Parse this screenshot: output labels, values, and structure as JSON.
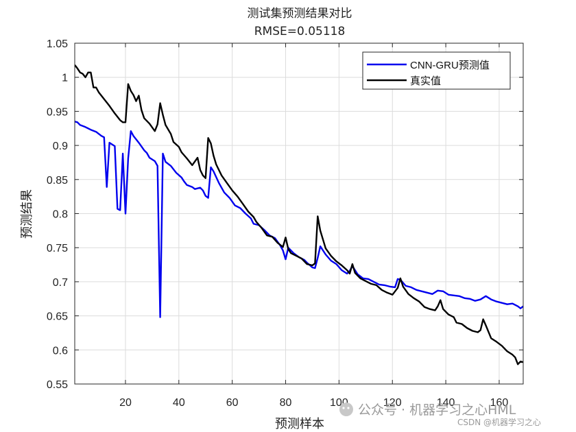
{
  "chart_data": {
    "type": "line",
    "title": "测试集预测结果对比",
    "subtitle": "RMSE=0.05118",
    "xlabel": "预测样本",
    "ylabel": "预测结果",
    "xlim": [
      1,
      169
    ],
    "ylim": [
      0.55,
      1.05
    ],
    "xticks": [
      20,
      40,
      60,
      80,
      100,
      120,
      140,
      160
    ],
    "yticks": [
      0.55,
      0.6,
      0.65,
      0.7,
      0.75,
      0.8,
      0.85,
      0.9,
      0.95,
      1,
      1.05
    ],
    "ytick_labels": [
      "0.55",
      "0.6",
      "0.65",
      "0.7",
      "0.75",
      "0.8",
      "0.85",
      "0.9",
      "0.95",
      "1",
      "1.05"
    ],
    "grid": true,
    "legend_position": "top-right",
    "series": [
      {
        "name": "CNN-GRU预测值",
        "color": "#0000ee",
        "points": [
          [
            1,
            0.935
          ],
          [
            2,
            0.934
          ],
          [
            3,
            0.93
          ],
          [
            5,
            0.927
          ],
          [
            7,
            0.923
          ],
          [
            9,
            0.92
          ],
          [
            10,
            0.917
          ],
          [
            11,
            0.914
          ],
          [
            12,
            0.912
          ],
          [
            13,
            0.839
          ],
          [
            14,
            0.904
          ],
          [
            16,
            0.899
          ],
          [
            17,
            0.807
          ],
          [
            18,
            0.805
          ],
          [
            19,
            0.888
          ],
          [
            20,
            0.8
          ],
          [
            21,
            0.881
          ],
          [
            22,
            0.921
          ],
          [
            23,
            0.914
          ],
          [
            25,
            0.904
          ],
          [
            27,
            0.893
          ],
          [
            28,
            0.889
          ],
          [
            29,
            0.882
          ],
          [
            31,
            0.877
          ],
          [
            32,
            0.87
          ],
          [
            33,
            0.648
          ],
          [
            34,
            0.888
          ],
          [
            35,
            0.876
          ],
          [
            37,
            0.87
          ],
          [
            39,
            0.86
          ],
          [
            41,
            0.853
          ],
          [
            42,
            0.847
          ],
          [
            43,
            0.842
          ],
          [
            45,
            0.839
          ],
          [
            46,
            0.836
          ],
          [
            48,
            0.838
          ],
          [
            49,
            0.834
          ],
          [
            50,
            0.826
          ],
          [
            51,
            0.823
          ],
          [
            52,
            0.868
          ],
          [
            53,
            0.862
          ],
          [
            55,
            0.845
          ],
          [
            57,
            0.831
          ],
          [
            59,
            0.823
          ],
          [
            61,
            0.812
          ],
          [
            63,
            0.808
          ],
          [
            65,
            0.8
          ],
          [
            67,
            0.793
          ],
          [
            68,
            0.785
          ],
          [
            70,
            0.783
          ],
          [
            72,
            0.776
          ],
          [
            74,
            0.768
          ],
          [
            76,
            0.764
          ],
          [
            78,
            0.753
          ],
          [
            79,
            0.746
          ],
          [
            80,
            0.733
          ],
          [
            81,
            0.75
          ],
          [
            83,
            0.742
          ],
          [
            85,
            0.736
          ],
          [
            87,
            0.732
          ],
          [
            88,
            0.728
          ],
          [
            90,
            0.721
          ],
          [
            91,
            0.72
          ],
          [
            92,
            0.735
          ],
          [
            93,
            0.752
          ],
          [
            95,
            0.74
          ],
          [
            97,
            0.731
          ],
          [
            99,
            0.726
          ],
          [
            101,
            0.717
          ],
          [
            103,
            0.712
          ],
          [
            104,
            0.716
          ],
          [
            105,
            0.723
          ],
          [
            107,
            0.711
          ],
          [
            109,
            0.705
          ],
          [
            111,
            0.704
          ],
          [
            113,
            0.7
          ],
          [
            115,
            0.696
          ],
          [
            117,
            0.695
          ],
          [
            119,
            0.693
          ],
          [
            121,
            0.692
          ],
          [
            122,
            0.704
          ],
          [
            123,
            0.703
          ],
          [
            125,
            0.694
          ],
          [
            127,
            0.692
          ],
          [
            129,
            0.688
          ],
          [
            131,
            0.686
          ],
          [
            133,
            0.684
          ],
          [
            135,
            0.682
          ],
          [
            137,
            0.687
          ],
          [
            139,
            0.686
          ],
          [
            141,
            0.681
          ],
          [
            143,
            0.68
          ],
          [
            145,
            0.679
          ],
          [
            147,
            0.676
          ],
          [
            149,
            0.675
          ],
          [
            151,
            0.672
          ],
          [
            153,
            0.674
          ],
          [
            155,
            0.679
          ],
          [
            157,
            0.674
          ],
          [
            159,
            0.671
          ],
          [
            161,
            0.669
          ],
          [
            163,
            0.667
          ],
          [
            165,
            0.668
          ],
          [
            167,
            0.664
          ],
          [
            168,
            0.661
          ],
          [
            169,
            0.664
          ]
        ]
      },
      {
        "name": "真实值",
        "color": "#000000",
        "points": [
          [
            1,
            1.018
          ],
          [
            2,
            1.013
          ],
          [
            3,
            1.007
          ],
          [
            4,
            1.005
          ],
          [
            5,
            1.0
          ],
          [
            6,
            1.007
          ],
          [
            7,
            1.007
          ],
          [
            8,
            0.985
          ],
          [
            9,
            0.985
          ],
          [
            10,
            0.978
          ],
          [
            12,
            0.968
          ],
          [
            14,
            0.958
          ],
          [
            16,
            0.947
          ],
          [
            18,
            0.937
          ],
          [
            19,
            0.934
          ],
          [
            20,
            0.934
          ],
          [
            21,
            0.99
          ],
          [
            22,
            0.98
          ],
          [
            23,
            0.974
          ],
          [
            24,
            0.965
          ],
          [
            25,
            0.973
          ],
          [
            26,
            0.952
          ],
          [
            27,
            0.94
          ],
          [
            29,
            0.932
          ],
          [
            31,
            0.921
          ],
          [
            32,
            0.931
          ],
          [
            33,
            0.962
          ],
          [
            34,
            0.945
          ],
          [
            35,
            0.93
          ],
          [
            37,
            0.917
          ],
          [
            38,
            0.905
          ],
          [
            40,
            0.898
          ],
          [
            41,
            0.89
          ],
          [
            43,
            0.881
          ],
          [
            45,
            0.871
          ],
          [
            47,
            0.882
          ],
          [
            48,
            0.864
          ],
          [
            49,
            0.856
          ],
          [
            50,
            0.852
          ],
          [
            51,
            0.911
          ],
          [
            52,
            0.903
          ],
          [
            53,
            0.885
          ],
          [
            54,
            0.872
          ],
          [
            56,
            0.856
          ],
          [
            58,
            0.845
          ],
          [
            60,
            0.834
          ],
          [
            62,
            0.825
          ],
          [
            64,
            0.814
          ],
          [
            66,
            0.803
          ],
          [
            68,
            0.795
          ],
          [
            69,
            0.788
          ],
          [
            71,
            0.779
          ],
          [
            73,
            0.768
          ],
          [
            75,
            0.766
          ],
          [
            77,
            0.757
          ],
          [
            79,
            0.751
          ],
          [
            80,
            0.765
          ],
          [
            81,
            0.748
          ],
          [
            82,
            0.742
          ],
          [
            84,
            0.738
          ],
          [
            86,
            0.734
          ],
          [
            88,
            0.726
          ],
          [
            90,
            0.724
          ],
          [
            91,
            0.727
          ],
          [
            92,
            0.796
          ],
          [
            93,
            0.775
          ],
          [
            95,
            0.749
          ],
          [
            97,
            0.738
          ],
          [
            99,
            0.73
          ],
          [
            101,
            0.724
          ],
          [
            103,
            0.717
          ],
          [
            104,
            0.712
          ],
          [
            105,
            0.726
          ],
          [
            106,
            0.713
          ],
          [
            108,
            0.705
          ],
          [
            110,
            0.701
          ],
          [
            112,
            0.697
          ],
          [
            114,
            0.695
          ],
          [
            116,
            0.688
          ],
          [
            118,
            0.684
          ],
          [
            120,
            0.681
          ],
          [
            122,
            0.691
          ],
          [
            123,
            0.705
          ],
          [
            124,
            0.693
          ],
          [
            126,
            0.682
          ],
          [
            128,
            0.676
          ],
          [
            130,
            0.671
          ],
          [
            132,
            0.663
          ],
          [
            134,
            0.66
          ],
          [
            136,
            0.658
          ],
          [
            137,
            0.664
          ],
          [
            138,
            0.673
          ],
          [
            139,
            0.66
          ],
          [
            141,
            0.652
          ],
          [
            143,
            0.648
          ],
          [
            144,
            0.64
          ],
          [
            146,
            0.638
          ],
          [
            148,
            0.632
          ],
          [
            150,
            0.628
          ],
          [
            152,
            0.626
          ],
          [
            153,
            0.629
          ],
          [
            154,
            0.645
          ],
          [
            155,
            0.636
          ],
          [
            157,
            0.617
          ],
          [
            159,
            0.612
          ],
          [
            161,
            0.606
          ],
          [
            163,
            0.598
          ],
          [
            165,
            0.593
          ],
          [
            166,
            0.589
          ],
          [
            167,
            0.579
          ],
          [
            168,
            0.583
          ],
          [
            169,
            0.582
          ],
          [
            170,
            0.592
          ]
        ]
      }
    ]
  },
  "watermark": {
    "main": "公众号 · 机器学习之心HML",
    "sub": "CSDN @机器学习之心"
  }
}
